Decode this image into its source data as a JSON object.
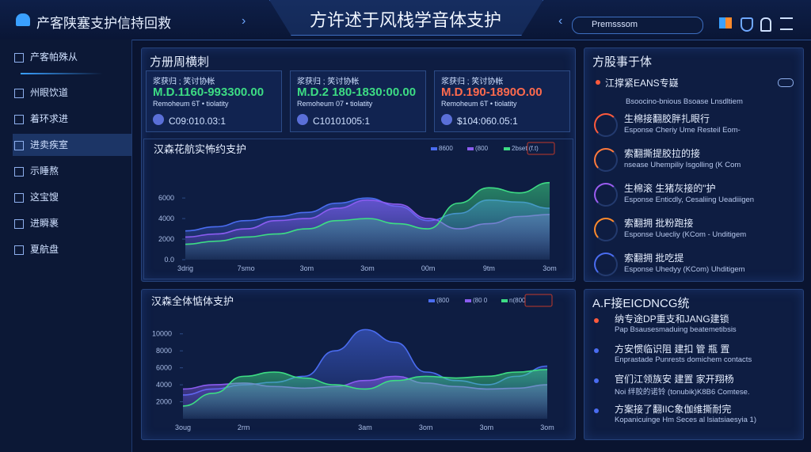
{
  "header": {
    "brand": "产客陕塞支护信持回救",
    "title": "方许述于风栈学音体支护",
    "search": "Premsssom"
  },
  "sidebar": {
    "items": [
      "产客帕殊从",
      "州眼饮道",
      "着环求进",
      "进卖疾室",
      "示睡熬",
      "这宝馊",
      "进瞬裹",
      "夏航盘"
    ],
    "active": 3
  },
  "stats_panel": {
    "title": "方册周横刺",
    "cards": [
      {
        "label": "浆获归 ; 笑讨协帐",
        "value": "M.D.1160-993300.00",
        "sub": "Remoheum 6T • tiolatity",
        "badge": "C09:010.03:1",
        "color": "#3ddc84"
      },
      {
        "label": "浆获归 ; 笑讨协帐",
        "value": "M.D.2 180-1830:00.00",
        "sub": "Remoheum 07 • tiolatity",
        "badge": "C10101005:1",
        "color": "#3ddc84"
      },
      {
        "label": "浆获归 ; 笑讨协帐",
        "value": "M.D.190-1890O.00",
        "sub": "Remoheum 6T • tiolatity",
        "badge": "$104:060.05:1",
        "color": "#ff6a4d"
      }
    ]
  },
  "chart_data": [
    {
      "type": "area",
      "title": "汉森花航实怖约支护",
      "categories": [
        "3drig",
        null,
        "7smo",
        null,
        "3om",
        null,
        "3om",
        null,
        "00m",
        null,
        "9tm",
        null,
        "3om"
      ],
      "ylim": [
        0,
        9400
      ],
      "yticks": [
        {
          "value": 0,
          "label": "0.0"
        },
        2000,
        4000,
        6000
      ],
      "series": [
        {
          "name": "8600",
          "color": "#4a6cf0",
          "values": [
            2800,
            3200,
            3800,
            4200,
            4600,
            5500,
            6000,
            5200,
            3800,
            4500,
            5800,
            5600,
            5000
          ]
        },
        {
          "name": "(800",
          "color": "#8a5cf0",
          "values": [
            2200,
            2500,
            3000,
            3800,
            4000,
            5000,
            5800,
            5400,
            4000,
            3000,
            3500,
            4200,
            4400
          ]
        },
        {
          "name": "2bset (f.t)",
          "color": "#3ddc84",
          "values": [
            1500,
            1800,
            2200,
            2500,
            3000,
            3800,
            4000,
            3500,
            3000,
            5500,
            7000,
            6500,
            7500
          ]
        }
      ]
    },
    {
      "type": "area",
      "title": "汉森全体惦体支护",
      "categories": [
        "3oug",
        null,
        "2rm",
        null,
        null,
        null,
        "3am",
        null,
        "3om",
        null,
        "3om",
        null,
        "3om"
      ],
      "ylim": [
        0,
        12400
      ],
      "yticks": [
        2000,
        4000,
        6000,
        8000,
        10000
      ],
      "series": [
        {
          "name": "(800",
          "color": "#4a6cf0",
          "values": [
            2800,
            3500,
            4000,
            4300,
            5000,
            8000,
            10500,
            9000,
            5500,
            4500,
            4000,
            5000,
            6200
          ]
        },
        {
          "name": "(80 0",
          "color": "#8a5cf0",
          "values": [
            3500,
            4000,
            4200,
            3800,
            3600,
            3800,
            4500,
            5000,
            4200,
            3800,
            3500,
            3600,
            4000
          ]
        },
        {
          "name": "n(800",
          "color": "#3ddc84",
          "values": [
            1500,
            3000,
            5000,
            5500,
            4800,
            4000,
            3500,
            4500,
            5000,
            4800,
            5000,
            5500,
            5800
          ]
        }
      ]
    }
  ],
  "right_top": {
    "title": "方股事于体",
    "head": {
      "title": "江撑紧EANS专嶷",
      "sub": "Bsoocino-bnious Bsoase Lnsdltiem"
    },
    "items": [
      {
        "title": "生棉接翻胶胖扎眼行",
        "sub": "Esponse Cheriy Ume Resteil Eom-",
        "color": "#ff5a3c"
      },
      {
        "title": "索翻撕提胶拉的接",
        "sub": "nsease Uhempiliy Isgolling (K Com",
        "color": "#ff7a3c"
      },
      {
        "title": "生棉滚 生猪灰接的\"护",
        "sub": "Esponse Enticdly, Cesaliing Ueadiiigen",
        "color": "#9a5cf0"
      },
      {
        "title": "索翻拥 批粉跑接",
        "sub": "Esponse Uuecliy (KCom - Unditigem",
        "color": "#ff8a2c"
      },
      {
        "title": "索翻拥 批吃提",
        "sub": "Esponse Uhedyy (KCom) Uhditigem",
        "color": "#4a6cf0"
      }
    ]
  },
  "right_bottom": {
    "title": "A.F接EICDNCG统",
    "items": [
      {
        "title": "纳专途DP重支和JANG建锁",
        "sub": "Pap Bsausesmaduing beatemetibsis",
        "color": "#ff5a3c"
      },
      {
        "title": "方安惯临识阻 建扣 管 瓶 置",
        "sub": "Enprastade Punrests domichem contacts",
        "color": "#4a6cf0"
      },
      {
        "title": "官们江领族安 建置 家开翔杨",
        "sub": "Noi 绊胶的诺铃 (tonubik)K8B6 Comtese.",
        "color": "#4a6cf0"
      },
      {
        "title": "方案接了翻IIC象伽维撕耐完",
        "sub": "Kopanicuinge Hm Seces al lsiatsiaesyia 1)",
        "color": "#4a6cf0"
      }
    ]
  }
}
